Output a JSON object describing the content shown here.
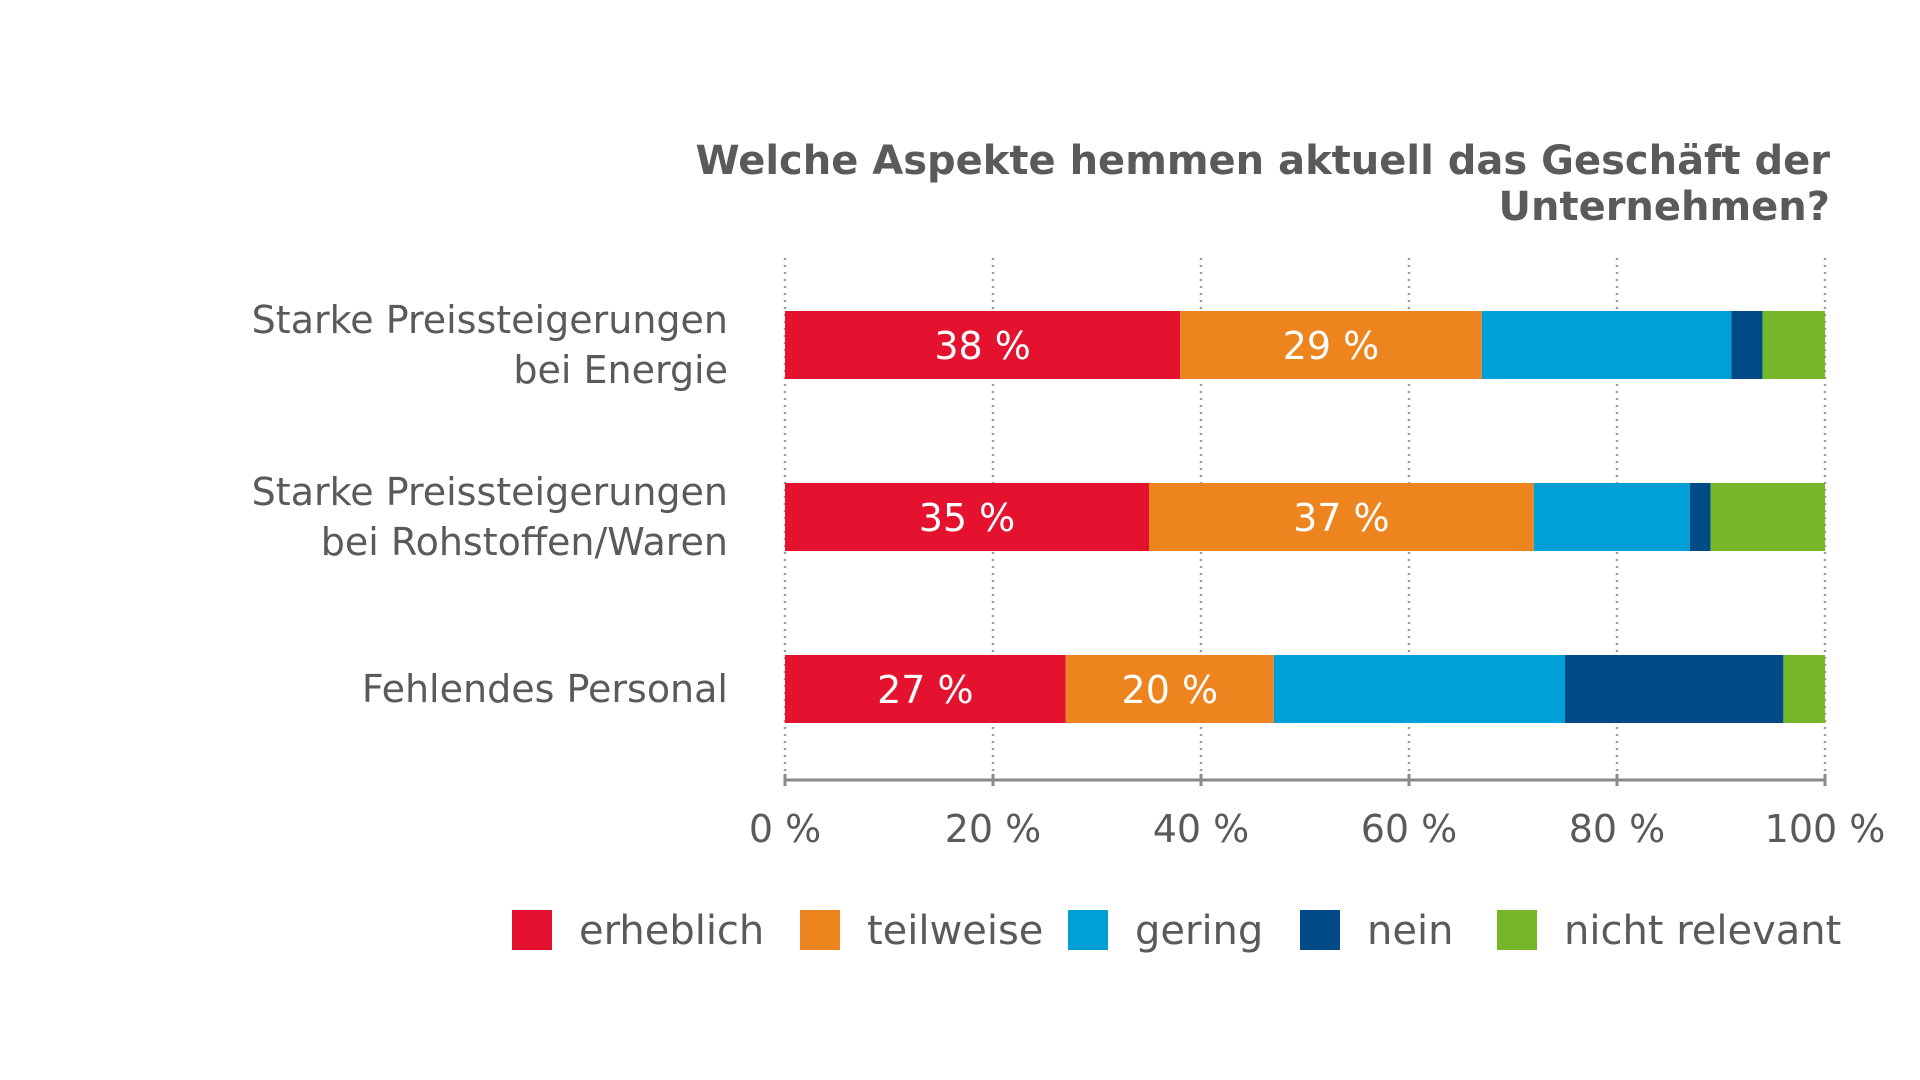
{
  "chart_data": {
    "type": "bar",
    "orientation": "horizontal",
    "stacked": true,
    "title": "Welche Aspekte hemmen aktuell das Geschäft der Unternehmen?",
    "categories": [
      [
        "Starke Preissteigerungen",
        "bei Energie"
      ],
      [
        "Starke Preissteigerungen",
        "bei Rohstoffen/Waren"
      ],
      [
        "Fehlendes Personal"
      ]
    ],
    "series": [
      {
        "name": "erheblich",
        "color": "#e4122e",
        "values": [
          38,
          35,
          27
        ],
        "labels": [
          "38 %",
          "35 %",
          "27 %"
        ]
      },
      {
        "name": "teilweise",
        "color": "#ee841e",
        "values": [
          29,
          37,
          20
        ],
        "labels": [
          "29 %",
          "37 %",
          "20 %"
        ]
      },
      {
        "name": "gering",
        "color": "#009fd6",
        "values": [
          24,
          15,
          28
        ],
        "labels": [
          "",
          "",
          ""
        ]
      },
      {
        "name": "nein",
        "color": "#004b87",
        "values": [
          3,
          2,
          21
        ],
        "labels": [
          "",
          "",
          ""
        ]
      },
      {
        "name": "nicht relevant",
        "color": "#76b72a",
        "values": [
          6,
          11,
          4
        ],
        "labels": [
          "",
          "",
          ""
        ]
      }
    ],
    "xlim": [
      0,
      100
    ],
    "xticks": [
      0,
      20,
      40,
      60,
      80,
      100
    ],
    "xtick_labels": [
      "0 %",
      "20 %",
      "40 %",
      "60 %",
      "80 %",
      "100 %"
    ],
    "grid": true,
    "grid_style": "dotted vertical",
    "legend_position": "bottom"
  }
}
